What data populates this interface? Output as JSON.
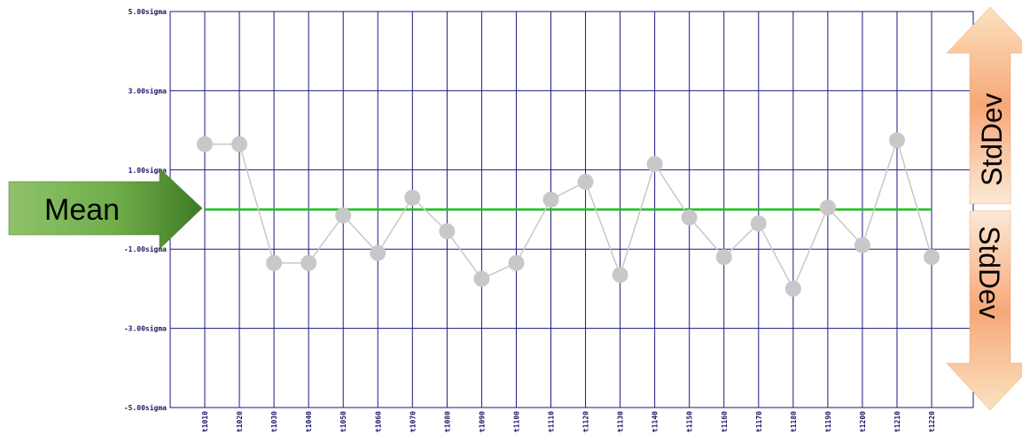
{
  "chart_data": {
    "type": "line",
    "title": "",
    "xlabel": "",
    "ylabel": "",
    "categories": [
      "t1010",
      "t1020",
      "t1030",
      "t1040",
      "t1050",
      "t1060",
      "t1070",
      "t1080",
      "t1090",
      "t1100",
      "t1110",
      "t1120",
      "t1130",
      "t1140",
      "t1150",
      "t1160",
      "t1170",
      "t1180",
      "t1190",
      "t1200",
      "t1210",
      "t1220"
    ],
    "values": [
      1.65,
      1.65,
      -1.35,
      -1.35,
      -0.15,
      -1.1,
      0.3,
      -0.55,
      -1.75,
      -1.35,
      0.25,
      0.7,
      -1.65,
      1.15,
      -0.2,
      -1.2,
      -0.35,
      -2.0,
      0.05,
      -0.9,
      1.75,
      -1.2
    ],
    "ylim": [
      -5,
      5
    ],
    "yticks": [
      {
        "value": 5,
        "label": "5.00sigma"
      },
      {
        "value": 3,
        "label": "3.00sigma"
      },
      {
        "value": 1,
        "label": "1.00sigma"
      },
      {
        "value": -1,
        "label": "-1.00sigma"
      },
      {
        "value": -3,
        "label": "-3.00sigma"
      },
      {
        "value": -5,
        "label": "-5.00sigma"
      }
    ],
    "mean_value": 0,
    "grid": true,
    "colors": {
      "grid": "#1a1a80",
      "mean_line": "#22bb22",
      "points": "#c8c8c8",
      "series_line": "#c8c8c8",
      "mean_arrow": "#5a9a3a",
      "stdev_arrow": "#f5a070"
    },
    "annotations": {
      "mean_label": "Mean",
      "stdev_up_label": "StdDev",
      "stdev_down_label": "StdDev"
    }
  }
}
